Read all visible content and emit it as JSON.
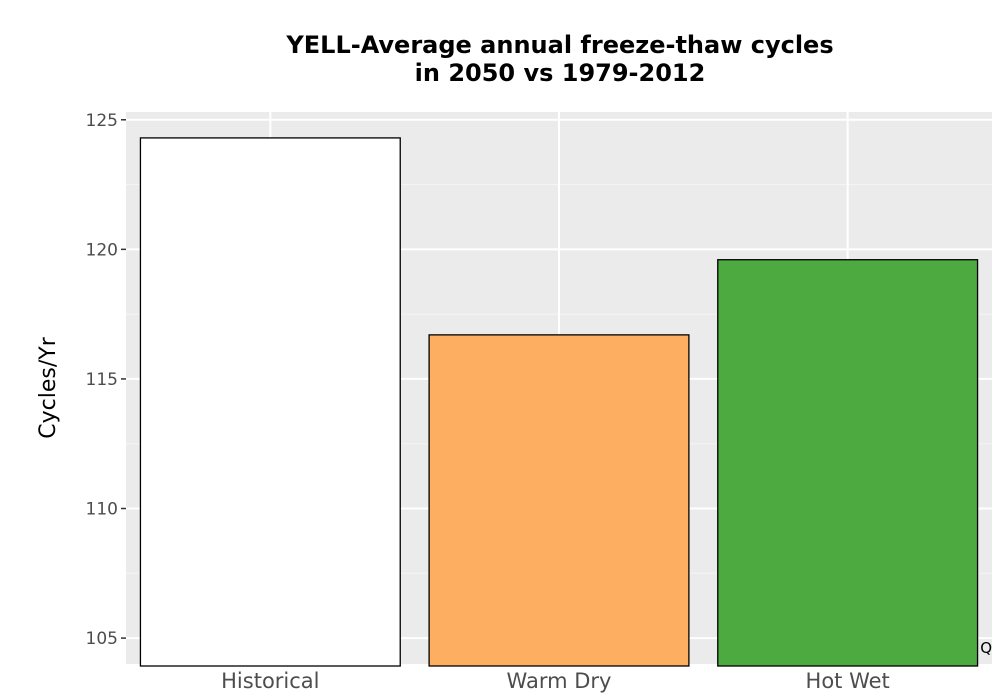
{
  "chart_data": {
    "type": "bar",
    "title_lines": [
      "YELL-Average annual freeze-thaw cycles",
      "in 2050 vs 1979-2012"
    ],
    "xlabel": "",
    "ylabel": "Cycles/Yr",
    "categories": [
      "Historical",
      "Warm Dry",
      "Hot Wet"
    ],
    "values": [
      124.3,
      116.7,
      119.6
    ],
    "colors": [
      "#ffffff",
      "#fdae61",
      "#4daa40"
    ],
    "ylim": [
      104,
      125.3
    ],
    "yticks": [
      105,
      110,
      115,
      120,
      125
    ],
    "grid": true,
    "legend": "none"
  },
  "corner_label": "Q"
}
